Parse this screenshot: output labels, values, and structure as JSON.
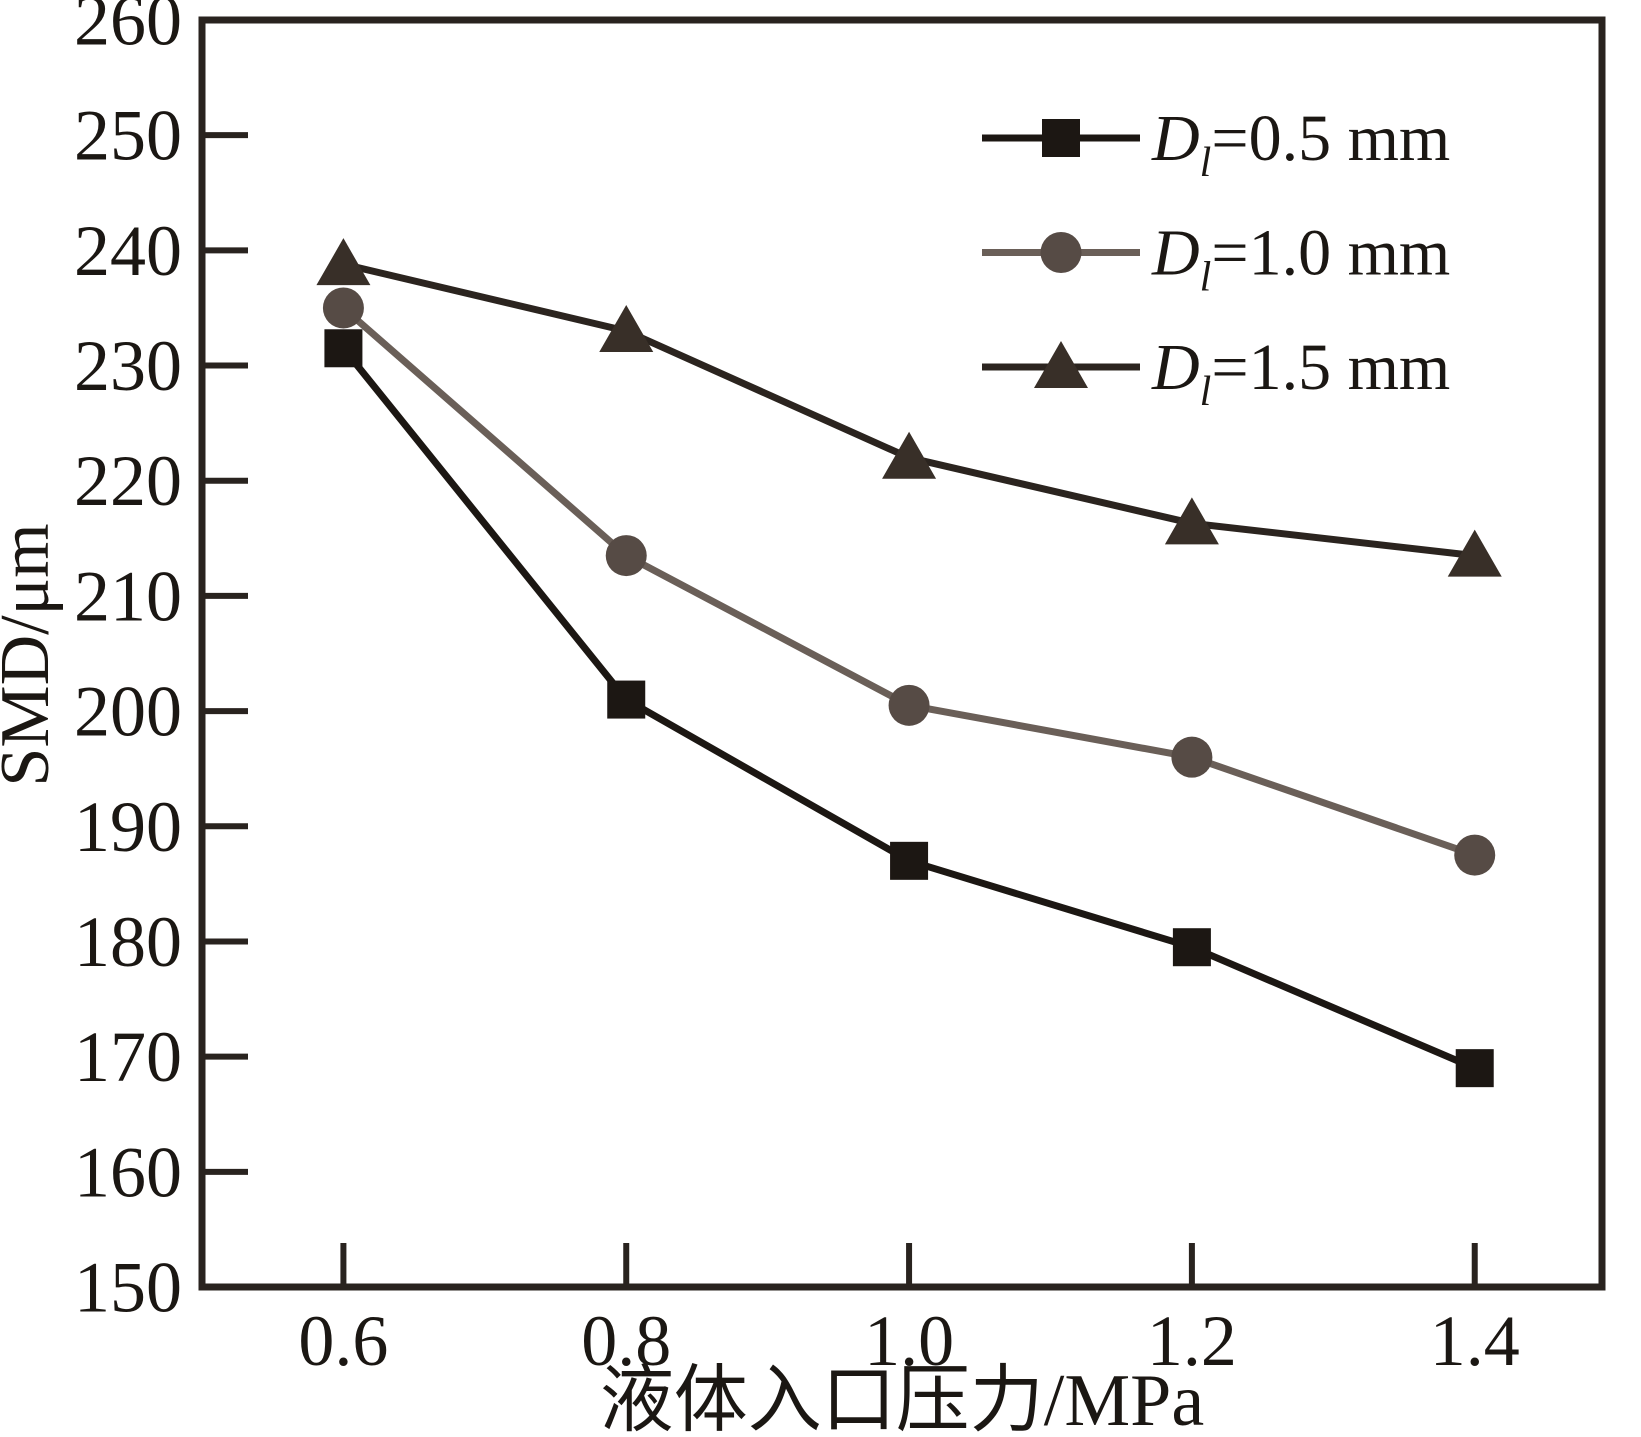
{
  "figure": {
    "background_color": "#ffffff",
    "frame_color": "#29231f",
    "text_color": "#1b1713"
  },
  "chart_data": {
    "type": "line",
    "title": "",
    "xlabel": "液体入口压力/MPa",
    "ylabel": "SMD/μm",
    "xlim": [
      0.5,
      1.49
    ],
    "ylim": [
      150,
      260
    ],
    "xticks": [
      0.6,
      0.8,
      1.0,
      1.2,
      1.4
    ],
    "yticks": [
      150,
      160,
      170,
      180,
      190,
      200,
      210,
      220,
      230,
      240,
      250,
      260
    ],
    "grid": false,
    "legend_position": "inside-top-right",
    "x": [
      0.6,
      0.8,
      1.0,
      1.2,
      1.4
    ],
    "series": [
      {
        "name": "Dl=0.5 mm",
        "label_parts": {
          "var": "D",
          "sub": "l",
          "rest": "=0.5 mm"
        },
        "marker": "square",
        "line_color": "#1c1713",
        "marker_color": "#1c1713",
        "values": [
          231.5,
          201.0,
          187.0,
          179.5,
          169.0
        ]
      },
      {
        "name": "Dl=1.0 mm",
        "label_parts": {
          "var": "D",
          "sub": "l",
          "rest": "=1.0 mm"
        },
        "marker": "circle",
        "line_color": "#6a5f58",
        "marker_color": "#564b45",
        "values": [
          235.0,
          213.5,
          200.5,
          196.0,
          187.5
        ]
      },
      {
        "name": "Dl=1.5 mm",
        "label_parts": {
          "var": "D",
          "sub": "l",
          "rest": "=1.5 mm"
        },
        "marker": "triangle",
        "line_color": "#2b241f",
        "marker_color": "#382f28",
        "values": [
          238.8,
          233.0,
          222.0,
          216.3,
          213.5
        ]
      }
    ]
  }
}
